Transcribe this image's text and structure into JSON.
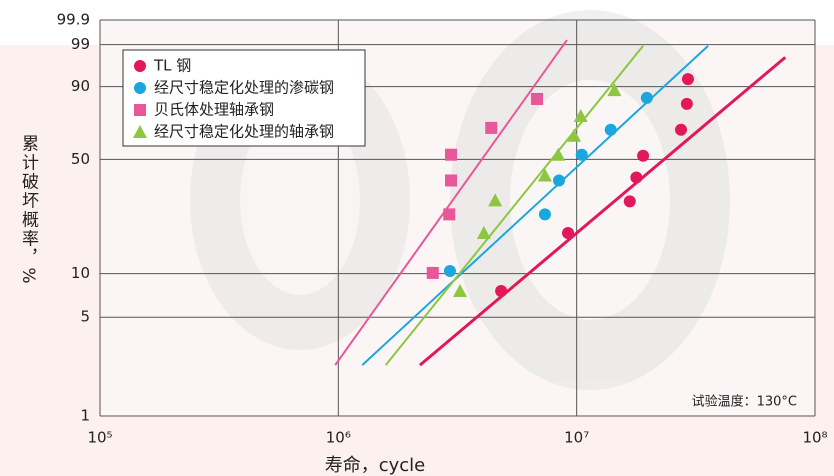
{
  "chart_data": {
    "type": "scatter",
    "xlabel": "寿命，cycle",
    "ylabel": "累计破坏概率，%",
    "annotation": "试验温度：130°C",
    "xscale": "log",
    "yscale": "weibull",
    "xlim": [
      100000,
      100000000
    ],
    "xticks": [
      {
        "value": 100000,
        "label": "10⁵"
      },
      {
        "value": 1000000,
        "label": "10⁶"
      },
      {
        "value": 10000000,
        "label": "10⁷"
      },
      {
        "value": 100000000,
        "label": "10⁸"
      }
    ],
    "ylim": [
      1,
      99.9
    ],
    "yticks": [
      1,
      5,
      10,
      50,
      90,
      99,
      99.9
    ],
    "grid": true,
    "legend": "upper left",
    "series": [
      {
        "name": "TL 钢",
        "color": "#e2185b",
        "marker": "circle",
        "x": [
          4820000,
          9200000,
          16700000,
          17800000,
          19000000,
          27400000,
          29000000,
          29300000
        ],
        "values": [
          7.6,
          18.6,
          29.3,
          40.2,
          52.1,
          67.7,
          82.3,
          92.6
        ],
        "fit": {
          "x": [
            2200000,
            75000000
          ],
          "values": [
            2.3,
            97.6
          ]
        }
      },
      {
        "name": "经尺寸稳定化处理的渗碳钢",
        "color": "#1ba6df",
        "marker": "circle",
        "x": [
          2940000,
          7360000,
          8430000,
          10500000,
          13900000,
          19700000
        ],
        "values": [
          10.4,
          24.4,
          38.7,
          52.7,
          67.7,
          85.2
        ],
        "fit": {
          "x": [
            1260000,
            35600000
          ],
          "values": [
            2.3,
            98.9
          ]
        }
      },
      {
        "name": "贝氏体处理轴承钢",
        "color": "#e9579b",
        "marker": "square",
        "x": [
          2490000,
          2920000,
          2970000,
          2970000,
          4380000,
          6820000
        ],
        "values": [
          10.1,
          24.4,
          38.7,
          52.7,
          68.8,
          84.7
        ],
        "fit": {
          "x": [
            970000,
            9100000
          ],
          "values": [
            2.3,
            99.3
          ]
        }
      },
      {
        "name": "经尺寸稳定化处理的轴承钢",
        "color": "#8dc640",
        "marker": "triangle",
        "x": [
          3240000,
          4080000,
          4550000,
          7360000,
          8360000,
          9750000,
          10400000,
          14400000
        ],
        "values": [
          7.6,
          18.6,
          29.7,
          41.2,
          52.7,
          64.1,
          75.8,
          88.6
        ],
        "fit": {
          "x": [
            1580000,
            19000000
          ],
          "values": [
            2.3,
            98.9
          ]
        }
      }
    ]
  }
}
